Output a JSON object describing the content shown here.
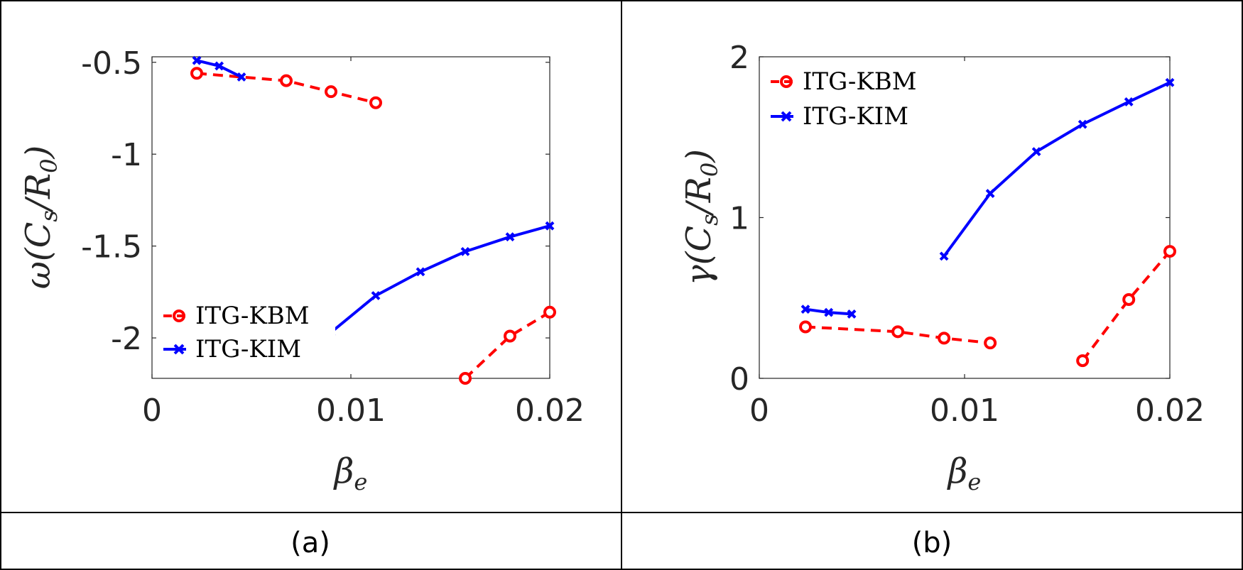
{
  "panels": [
    {
      "caption": "(a)",
      "chart_data": {
        "type": "line",
        "xlabel": "β",
        "xlabel_sub": "e",
        "ylabel": "ω(C",
        "ylabel_sub1": "s",
        "ylabel_mid": "/R",
        "ylabel_sub2": "0",
        "ylabel_end": ")",
        "xlim": [
          0,
          0.02
        ],
        "ylim": [
          -2.22,
          -0.47
        ],
        "xticks": [
          0,
          0.01,
          0.02
        ],
        "xtick_labels": [
          "0",
          "0.01",
          "0.02"
        ],
        "yticks": [
          -0.5,
          -1,
          -1.5,
          -2
        ],
        "ytick_labels": [
          "-0.5",
          "-1",
          "-1.5",
          "-2"
        ],
        "legend_position": "lower-left",
        "series": [
          {
            "name": "ITG-KBM",
            "color": "#ff0000",
            "style": "dashed",
            "marker": "circle",
            "segments": [
              {
                "x": [
                  0.00225,
                  0.00675,
                  0.009,
                  0.01125
                ],
                "y": [
                  -0.56,
                  -0.6,
                  -0.66,
                  -0.72
                ]
              },
              {
                "x": [
                  0.01575,
                  0.018,
                  0.02
                ],
                "y": [
                  -2.22,
                  -1.99,
                  -1.86
                ]
              }
            ]
          },
          {
            "name": "ITG-KIM",
            "color": "#0000ff",
            "style": "solid",
            "marker": "x",
            "segments": [
              {
                "x": [
                  0.00225,
                  0.00338,
                  0.0045
                ],
                "y": [
                  -0.49,
                  -0.52,
                  -0.58
                ]
              },
              {
                "x": [
                  0.009,
                  0.01125,
                  0.0135,
                  0.01575,
                  0.018,
                  0.02
                ],
                "y": [
                  -1.97,
                  -1.77,
                  -1.64,
                  -1.53,
                  -1.45,
                  -1.39
                ]
              }
            ]
          }
        ]
      }
    },
    {
      "caption": "(b)",
      "chart_data": {
        "type": "line",
        "xlabel": "β",
        "xlabel_sub": "e",
        "ylabel": "γ(C",
        "ylabel_sub1": "s",
        "ylabel_mid": "/R",
        "ylabel_sub2": "0",
        "ylabel_end": ")",
        "xlim": [
          0,
          0.02
        ],
        "ylim": [
          0,
          2
        ],
        "xticks": [
          0,
          0.01,
          0.02
        ],
        "xtick_labels": [
          "0",
          "0.01",
          "0.02"
        ],
        "yticks": [
          0,
          1,
          2
        ],
        "ytick_labels": [
          "0",
          "1",
          "2"
        ],
        "legend_position": "top-left",
        "series": [
          {
            "name": "ITG-KBM",
            "color": "#ff0000",
            "style": "dashed",
            "marker": "circle",
            "segments": [
              {
                "x": [
                  0.00225,
                  0.00675,
                  0.009,
                  0.01125
                ],
                "y": [
                  0.32,
                  0.29,
                  0.25,
                  0.22
                ]
              },
              {
                "x": [
                  0.01575,
                  0.018,
                  0.02
                ],
                "y": [
                  0.11,
                  0.49,
                  0.79
                ]
              }
            ]
          },
          {
            "name": "ITG-KIM",
            "color": "#0000ff",
            "style": "solid",
            "marker": "x",
            "segments": [
              {
                "x": [
                  0.00225,
                  0.00338,
                  0.0045
                ],
                "y": [
                  0.43,
                  0.41,
                  0.4
                ]
              },
              {
                "x": [
                  0.009,
                  0.01125,
                  0.0135,
                  0.01575,
                  0.018,
                  0.02
                ],
                "y": [
                  0.76,
                  1.15,
                  1.41,
                  1.58,
                  1.72,
                  1.84
                ]
              }
            ]
          }
        ]
      }
    }
  ]
}
